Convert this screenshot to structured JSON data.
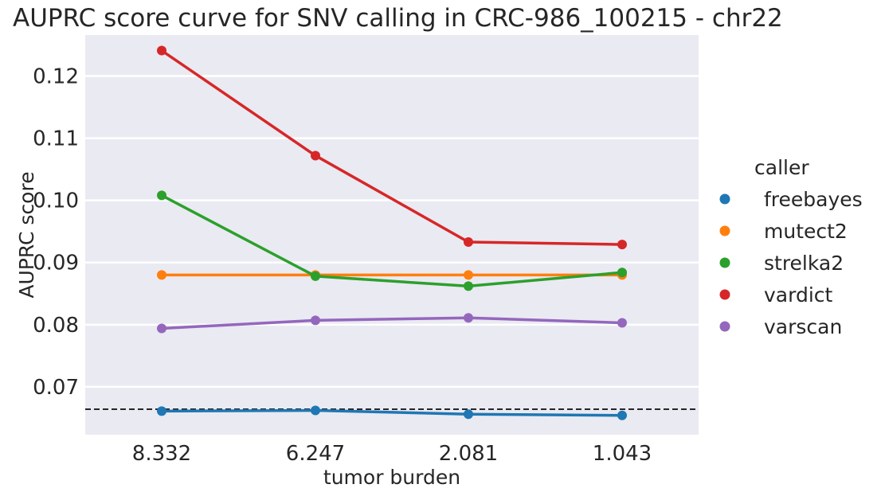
{
  "chart_data": {
    "type": "line",
    "title": "AUPRC score curve for SNV calling in CRC-986_100215 - chr22",
    "xlabel": "tumor burden",
    "ylabel": "AUPRC score",
    "categories": [
      "8.332",
      "6.247",
      "2.081",
      "1.043"
    ],
    "ylim": [
      0.0623,
      0.1266
    ],
    "yticks": [
      0.07,
      0.08,
      0.09,
      0.1,
      0.11,
      0.12
    ],
    "ytick_labels": [
      "0.07",
      "0.08",
      "0.09",
      "0.10",
      "0.11",
      "0.12"
    ],
    "grid": true,
    "legend": {
      "title": "caller",
      "placement": "right"
    },
    "reference_line": {
      "y": 0.0664,
      "style": "dashed",
      "color": "#262626"
    },
    "series": [
      {
        "name": "freebayes",
        "color": "#1f77b4",
        "values": [
          0.0661,
          0.0662,
          0.0656,
          0.0654
        ]
      },
      {
        "name": "mutect2",
        "color": "#ff7f0e",
        "values": [
          0.088,
          0.088,
          0.088,
          0.088
        ]
      },
      {
        "name": "strelka2",
        "color": "#2ca02c",
        "values": [
          0.1008,
          0.0878,
          0.0862,
          0.0884
        ]
      },
      {
        "name": "vardict",
        "color": "#d62728",
        "values": [
          0.1241,
          0.1072,
          0.0933,
          0.0929
        ]
      },
      {
        "name": "varscan",
        "color": "#9467bd",
        "values": [
          0.0794,
          0.0807,
          0.0811,
          0.0803
        ]
      }
    ]
  }
}
